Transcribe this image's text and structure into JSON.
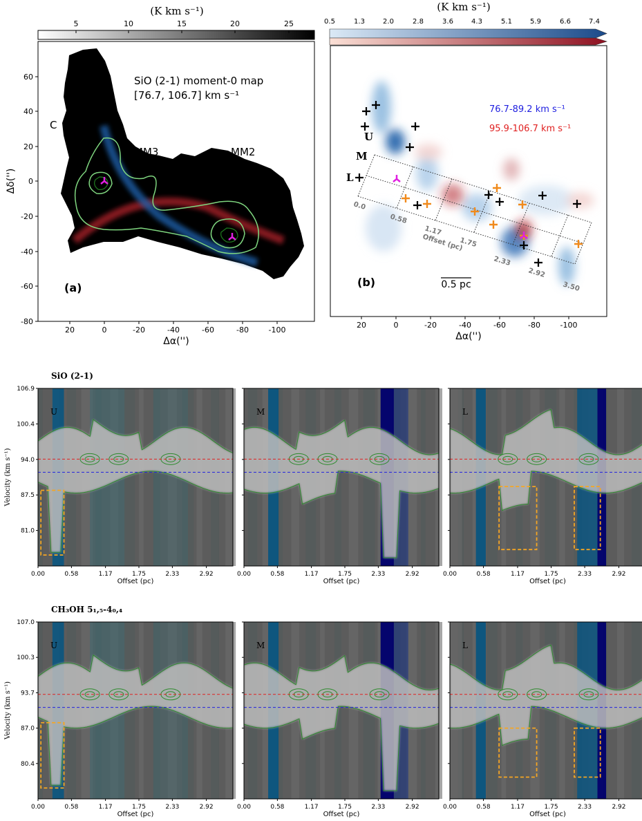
{
  "colors": {
    "blue_lobe": "#1f5fa8",
    "red_lobe": "#b0202a",
    "contour_green": "#7fd67f",
    "marker_magenta": "#e020e0",
    "cross_orange": "#f08a1c",
    "cross_black": "#000000",
    "box_orange": "#f5a623",
    "vsys_red": "#e02020",
    "vsys_blue": "#2020e0"
  },
  "panel_a": {
    "colorbar_unit": "(K km s⁻¹)",
    "colorbar_ticks": [
      "5",
      "10",
      "15",
      "20",
      "25"
    ],
    "title_line1": "SiO (2-1) moment-0 map",
    "title_line2": "[76.7, 106.7] km s⁻¹",
    "label_mm3": "MM3",
    "label_mm2": "MM2",
    "label_c": "C",
    "panel_label": "(a)",
    "xlabel": "Δα('')",
    "ylabel": "Δδ('')",
    "xticks": [
      "20",
      "0",
      "-20",
      "-40",
      "-60",
      "-80",
      "-100"
    ],
    "yticks": [
      "60",
      "40",
      "20",
      "0",
      "-20",
      "-40",
      "-60",
      "-80"
    ]
  },
  "panel_b": {
    "colorbar_unit": "(K km s⁻¹)",
    "colorbar_ticks": [
      "0.5",
      "1.3",
      "2.0",
      "2.8",
      "3.6",
      "4.3",
      "5.1",
      "5.9",
      "6.6",
      "7.4"
    ],
    "blue_range": "76.7-89.2 km s⁻¹",
    "red_range": "95.9-106.7 km s⁻¹",
    "label_u": "U",
    "label_m": "M",
    "label_l": "L",
    "offset_ticks": [
      "0.0",
      "0.58",
      "1.17",
      "1.75",
      "2.33",
      "2.92",
      "3.50"
    ],
    "offset_label": "Offset (pc)",
    "scalebar": "0.5 pc",
    "panel_label": "(b)",
    "xlabel": "Δα('')",
    "xticks": [
      "20",
      "0",
      "-20",
      "-40",
      "-60",
      "-80",
      "-100"
    ]
  },
  "pv_rows": [
    {
      "title": "SiO (2-1)",
      "ylabel": "Velocity (km s⁻¹)",
      "yticks": [
        "106.9",
        "100.4",
        "94.0",
        "87.5",
        "81.0"
      ],
      "xlabel": "Offset (pc)",
      "xticks": [
        "0.00",
        "0.58",
        "1.17",
        "1.75",
        "2.33",
        "2.92"
      ],
      "panels": [
        "U",
        "M",
        "L"
      ]
    },
    {
      "title": "CH₃OH 5₁,₅-4₀,₄",
      "ylabel": "Velocity (km s⁻¹)",
      "yticks": [
        "107.0",
        "100.3",
        "93.7",
        "87.0",
        "80.4"
      ],
      "xlabel": "Offset (pc)",
      "xticks": [
        "0.00",
        "0.58",
        "1.17",
        "1.75",
        "2.33",
        "2.92"
      ],
      "panels": [
        "U",
        "M",
        "L"
      ]
    }
  ],
  "chart_data": [
    {
      "type": "heatmap",
      "title": "SiO (2-1) moment-0 map",
      "subtitle": "[76.7, 106.7] km s⁻¹",
      "xlabel": "Δα('')",
      "ylabel": "Δδ('')",
      "xlim": [
        38,
        -122
      ],
      "ylim": [
        -80,
        80
      ],
      "colorbar": {
        "label": "(K km s⁻¹)",
        "range": [
          0,
          27
        ],
        "ticks": [
          5,
          10,
          15,
          20,
          25
        ]
      },
      "sources": [
        {
          "name": "MM3",
          "x": 0,
          "y": 0
        },
        {
          "name": "MM2",
          "x": -75,
          "y": -32
        }
      ]
    },
    {
      "type": "heatmap",
      "series": [
        {
          "name": "76.7-89.2 km s⁻¹"
        },
        {
          "name": "95.9-106.7 km s⁻¹"
        }
      ],
      "xlabel": "Δα('')",
      "xlim": [
        38,
        -122
      ],
      "colorbar": {
        "label": "(K km s⁻¹)",
        "ticks": [
          0.5,
          1.3,
          2.0,
          2.8,
          3.6,
          4.3,
          5.1,
          5.9,
          6.6,
          7.4
        ]
      },
      "offset_ticks_pc": [
        0.0,
        0.58,
        1.17,
        1.75,
        2.33,
        2.92,
        3.5
      ],
      "black_crosses": [
        [
          20,
          31
        ],
        [
          10,
          43
        ],
        [
          15,
          40
        ],
        [
          -11,
          32
        ],
        [
          -8,
          20
        ],
        [
          -54,
          -8
        ],
        [
          -59,
          -12
        ],
        [
          -85,
          -8
        ],
        [
          -107,
          -12
        ],
        [
          -75,
          -37
        ],
        [
          -85,
          -46
        ],
        [
          -12,
          -13
        ]
      ],
      "orange_crosses": [
        [
          6,
          -9
        ],
        [
          -18,
          -12
        ],
        [
          -46,
          -17
        ],
        [
          -59,
          -24
        ],
        [
          -58,
          -3
        ],
        [
          -73,
          -12
        ],
        [
          -75,
          -31
        ],
        [
          -107,
          -36
        ]
      ]
    },
    {
      "type": "heatmap",
      "title": "SiO (2-1)",
      "panel": "U",
      "xlabel": "Offset (pc)",
      "ylabel": "Velocity (km s⁻¹)",
      "xlim": [
        0,
        3.38
      ],
      "ylim": [
        74.5,
        106.9
      ],
      "xticks": [
        0.0,
        0.58,
        1.17,
        1.75,
        2.33,
        2.92
      ],
      "yticks": [
        106.9,
        100.4,
        94.0,
        87.5,
        81.0
      ],
      "vsys_red": 94.0,
      "vsys_blue": 91.6,
      "highlight_box": {
        "offset": [
          0.05,
          0.45
        ],
        "velocity": [
          76.5,
          88.3
        ]
      }
    },
    {
      "type": "heatmap",
      "title": "SiO (2-1)",
      "panel": "M",
      "xlabel": "Offset (pc)",
      "xlim": [
        0,
        3.38
      ],
      "ylim": [
        74.5,
        106.9
      ],
      "vsys_red": 94.0,
      "vsys_blue": 91.6
    },
    {
      "type": "heatmap",
      "title": "SiO (2-1)",
      "panel": "L",
      "xlabel": "Offset (pc)",
      "xlim": [
        0,
        3.38
      ],
      "ylim": [
        74.5,
        106.9
      ],
      "vsys_red": 94.0,
      "vsys_blue": 91.6,
      "highlight_box": [
        {
          "offset": [
            0.85,
            1.5
          ],
          "velocity": [
            77.5,
            89.0
          ]
        },
        {
          "offset": [
            2.15,
            2.6
          ],
          "velocity": [
            77.5,
            89.0
          ]
        }
      ]
    },
    {
      "type": "heatmap",
      "title": "CH₃OH 5₁,₅-4₀,₄",
      "panel": "U",
      "xlabel": "Offset (pc)",
      "ylabel": "Velocity (km s⁻¹)",
      "xlim": [
        0,
        3.38
      ],
      "ylim": [
        74.5,
        107.0
      ],
      "xticks": [
        0.0,
        0.58,
        1.17,
        1.75,
        2.33,
        2.92
      ],
      "yticks": [
        107.0,
        100.3,
        93.7,
        87.0,
        80.4
      ],
      "vsys_red": 93.7,
      "vsys_blue": 91.3,
      "highlight_box": {
        "offset": [
          0.05,
          0.45
        ],
        "velocity": [
          76.5,
          88.5
        ]
      }
    },
    {
      "type": "heatmap",
      "title": "CH₃OH 5₁,₅-4₀,₄",
      "panel": "M",
      "xlabel": "Offset (pc)",
      "xlim": [
        0,
        3.38
      ],
      "ylim": [
        74.5,
        107.0
      ],
      "vsys_red": 93.7,
      "vsys_blue": 91.3
    },
    {
      "type": "heatmap",
      "title": "CH₃OH 5₁,₅-4₀,₄",
      "panel": "L",
      "xlabel": "Offset (pc)",
      "xlim": [
        0,
        3.38
      ],
      "ylim": [
        74.5,
        107.0
      ],
      "vsys_red": 93.7,
      "vsys_blue": 91.3,
      "highlight_box": [
        {
          "offset": [
            0.85,
            1.5
          ],
          "velocity": [
            78.5,
            87.5
          ]
        },
        {
          "offset": [
            2.15,
            2.6
          ],
          "velocity": [
            78.5,
            87.5
          ]
        }
      ]
    }
  ]
}
